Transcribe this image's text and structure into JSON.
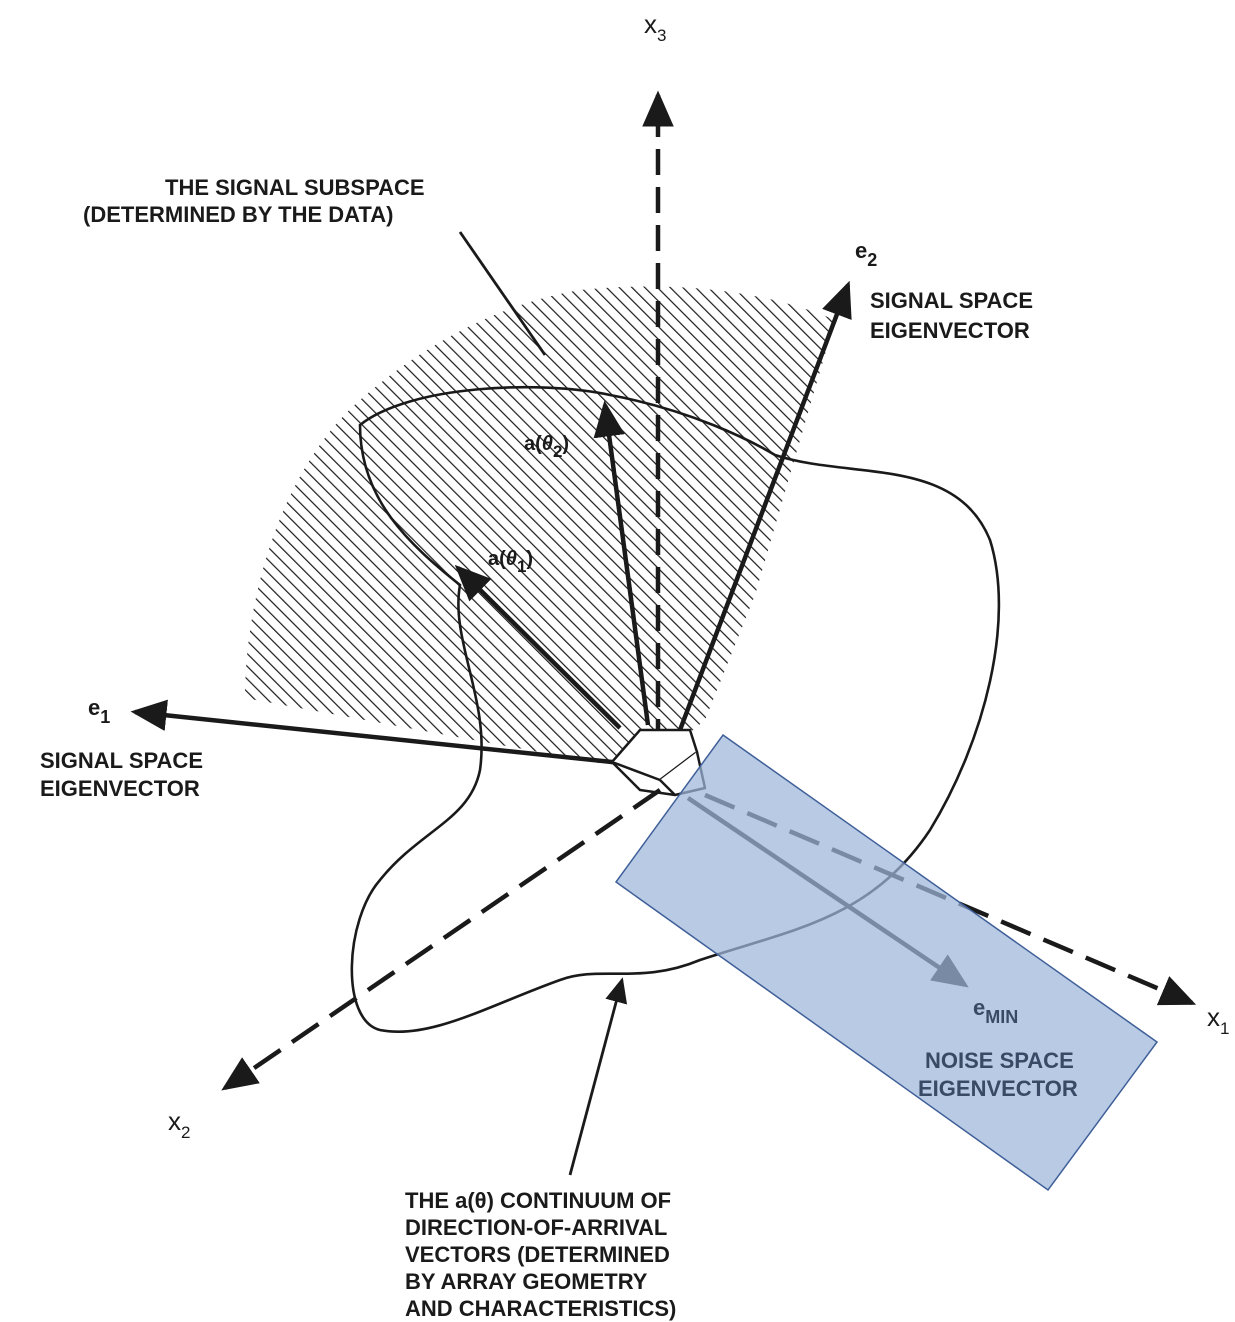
{
  "axes": {
    "x1": {
      "main": "x",
      "sub": "1"
    },
    "x2": {
      "main": "x",
      "sub": "2"
    },
    "x3": {
      "main": "x",
      "sub": "3"
    }
  },
  "eigenvectors": {
    "e1": {
      "main": "e",
      "sub": "1",
      "caption": [
        "SIGNAL SPACE",
        "EIGENVECTOR"
      ]
    },
    "e2": {
      "main": "e",
      "sub": "2",
      "caption": [
        "SIGNAL SPACE",
        "EIGENVECTOR"
      ]
    },
    "emin": {
      "main": "e",
      "sub": "MIN",
      "caption": [
        "NOISE SPACE",
        "EIGENVECTOR"
      ]
    }
  },
  "vectors": {
    "a_theta1": {
      "prefix": "a(",
      "symbol": "θ",
      "sub": "1",
      "suffix": ")"
    },
    "a_theta2": {
      "prefix": "a(",
      "symbol": "θ",
      "sub": "2",
      "suffix": ")"
    }
  },
  "annotations": {
    "signal_subspace": [
      "THE SIGNAL SUBSPACE",
      "(DETERMINED BY THE DATA)"
    ],
    "continuum": [
      "THE a(θ) CONTINUUM OF",
      "DIRECTION-OF-ARRIVAL",
      "VECTORS (DETERMINED",
      "BY ARRAY GEOMETRY",
      "AND CHARACTERISTICS)"
    ]
  },
  "colors": {
    "ink": "#1a1a1a",
    "highlight_fill": "#9db6da",
    "highlight_stroke": "#3f5f99"
  }
}
